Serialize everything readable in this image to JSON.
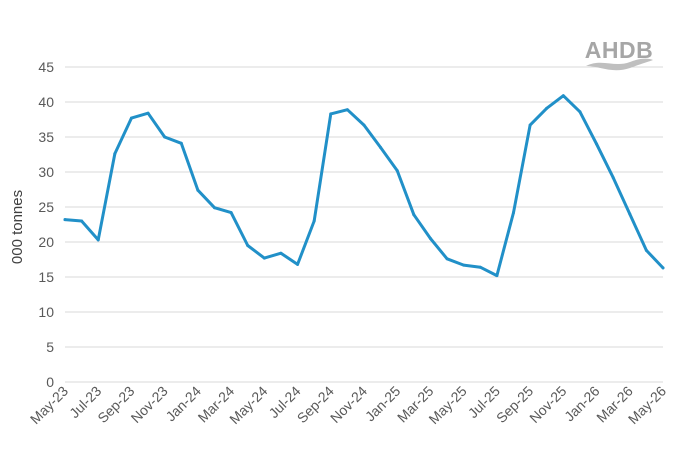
{
  "logo": {
    "text": "AHDB"
  },
  "chart_data": {
    "type": "line",
    "title": "",
    "xlabel": "",
    "ylabel": "000 tonnes",
    "ylim": [
      0,
      45
    ],
    "yticks": [
      0,
      5,
      10,
      15,
      20,
      25,
      30,
      35,
      40,
      45
    ],
    "grid": true,
    "legend": "none",
    "line_color": "#2190c8",
    "x_tick_labels": [
      "May-23",
      "Jul-23",
      "Sep-23",
      "Nov-23",
      "Jan-24",
      "Mar-24",
      "May-24",
      "Jul-24",
      "Sep-24",
      "Nov-24",
      "Jan-25",
      "Mar-25",
      "May-25",
      "Jul-25",
      "Sep-25",
      "Nov-25",
      "Jan-26",
      "Mar-26",
      "May-26"
    ],
    "x": [
      "May-23",
      "Jun-23",
      "Jul-23",
      "Aug-23",
      "Sep-23",
      "Oct-23",
      "Nov-23",
      "Dec-23",
      "Jan-24",
      "Feb-24",
      "Mar-24",
      "Apr-24",
      "May-24",
      "Jun-24",
      "Jul-24",
      "Aug-24",
      "Sep-24",
      "Oct-24",
      "Nov-24",
      "Dec-24",
      "Jan-25",
      "Feb-25",
      "Mar-25",
      "Apr-25",
      "May-25",
      "Jun-25",
      "Jul-25",
      "Aug-25",
      "Sep-25",
      "Oct-25",
      "Nov-25",
      "Dec-25",
      "Jan-26",
      "Feb-26",
      "Mar-26",
      "Apr-26",
      "May-26"
    ],
    "series": [
      {
        "values": [
          23.2,
          23.0,
          20.3,
          32.6,
          37.7,
          38.4,
          35.0,
          34.1,
          27.4,
          24.9,
          24.2,
          19.5,
          17.7,
          18.4,
          16.8,
          23.0,
          38.3,
          38.9,
          36.7,
          33.5,
          30.2,
          23.9,
          20.5,
          17.6,
          16.7,
          16.4,
          15.2,
          24.2,
          36.7,
          39.1,
          40.9,
          38.6,
          34.0,
          29.2,
          24.0,
          18.8,
          16.3
        ]
      }
    ]
  }
}
